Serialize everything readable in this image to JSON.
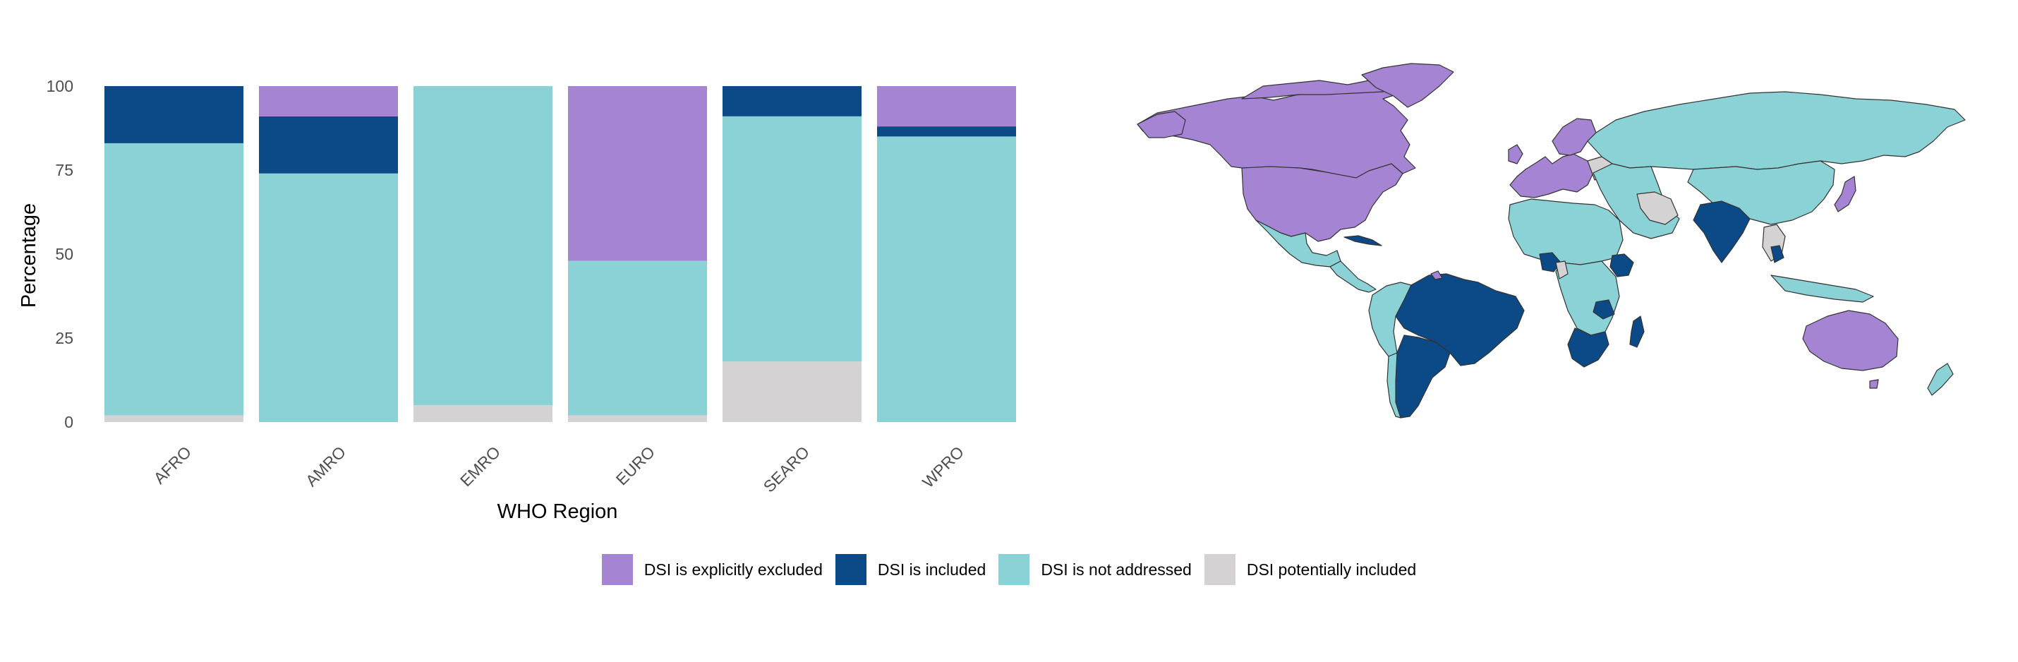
{
  "chart_data": {
    "type": "bar",
    "stacked": true,
    "xlabel": "WHO Region",
    "ylabel": "Percentage",
    "ylim": [
      0,
      100
    ],
    "yticks": [
      0,
      25,
      50,
      75,
      100
    ],
    "categories": [
      "AFRO",
      "AMRO",
      "EMRO",
      "EURO",
      "SEARO",
      "WPRO"
    ],
    "series": [
      {
        "name": "DSI potentially included",
        "color": "#d4d2d3",
        "values": [
          2,
          0,
          5,
          2,
          18,
          0
        ]
      },
      {
        "name": "DSI is not addressed",
        "color": "#8ad2d5",
        "values": [
          81,
          74,
          95,
          46,
          73,
          85
        ]
      },
      {
        "name": "DSI is included",
        "color": "#0b4a86",
        "values": [
          17,
          17,
          0,
          0,
          9,
          3
        ]
      },
      {
        "name": "DSI is explicitly excluded",
        "color": "#a584d4",
        "values": [
          0,
          9,
          0,
          52,
          0,
          12
        ]
      }
    ],
    "legend_position": "bottom",
    "grid": false
  },
  "legend": {
    "items": [
      {
        "label": "DSI is explicitly excluded",
        "color": "#a584d4"
      },
      {
        "label": "DSI is included",
        "color": "#0b4a86"
      },
      {
        "label": "DSI is not addressed",
        "color": "#8ad2d5"
      },
      {
        "label": "DSI potentially included",
        "color": "#d4d2d3"
      }
    ]
  },
  "map": {
    "icon": "world-choropleth-map",
    "ocean_color": "#ffffff",
    "border_color": "#333333"
  }
}
